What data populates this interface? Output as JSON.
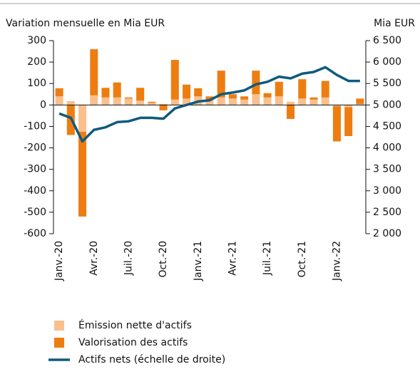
{
  "chart_data": {
    "type": "bar",
    "y_label": "Variation mensuelle en Mia EUR",
    "y2_label": "Mia EUR",
    "categories": [
      "Janv.-20",
      null,
      null,
      "Avr.-20",
      null,
      null,
      "Juil.-20",
      null,
      null,
      "Oct.-20",
      null,
      null,
      "Janv.-21",
      null,
      null,
      "Avr.-21",
      null,
      null,
      "Juil.-21",
      null,
      null,
      "Oct.-21",
      null,
      null,
      "Janv.-22",
      null,
      null
    ],
    "series": [
      {
        "name": "Émission nette d'actifs",
        "color": "#f9c08e",
        "stacked": true,
        "values": [
          40,
          18,
          -125,
          45,
          35,
          35,
          30,
          20,
          10,
          5,
          25,
          30,
          40,
          25,
          35,
          30,
          25,
          50,
          35,
          40,
          15,
          30,
          25,
          35,
          -5,
          -10,
          5
        ]
      },
      {
        "name": "Valorisation des actifs",
        "color": "#ee7d11",
        "stacked": true,
        "values": [
          38,
          -140,
          -395,
          215,
          45,
          70,
          5,
          60,
          5,
          -25,
          185,
          65,
          38,
          15,
          125,
          20,
          15,
          110,
          20,
          68,
          -65,
          90,
          10,
          77,
          -165,
          -135,
          25
        ]
      },
      {
        "name": "Actifs nets (échelle de droite)",
        "color": "#0f5a7e",
        "type": "line",
        "axis": "y2",
        "values": [
          4800,
          4700,
          4150,
          4420,
          4480,
          4600,
          4620,
          4700,
          4700,
          4680,
          4920,
          5000,
          5080,
          5110,
          5250,
          5290,
          5340,
          5480,
          5540,
          5660,
          5620,
          5730,
          5770,
          5880,
          5700,
          5560,
          5560
        ]
      }
    ],
    "ylim": [
      -600,
      300
    ],
    "yticks": [
      300,
      200,
      100,
      0,
      -100,
      -200,
      -300,
      -400,
      -500,
      -600
    ],
    "y2lim": [
      2000,
      6500
    ],
    "y2ticks": [
      {
        "value": 6500,
        "label": "6 500"
      },
      {
        "value": 6000,
        "label": "6 000"
      },
      {
        "value": 5500,
        "label": "5 500"
      },
      {
        "value": 5000,
        "label": "5 000"
      },
      {
        "value": 4500,
        "label": "4 500"
      },
      {
        "value": 4000,
        "label": "4 000"
      },
      {
        "value": 3500,
        "label": "3 500"
      },
      {
        "value": 3000,
        "label": "3 000"
      },
      {
        "value": 2500,
        "label": "2 500"
      },
      {
        "value": 2000,
        "label": "2 000"
      }
    ],
    "grid": false
  }
}
